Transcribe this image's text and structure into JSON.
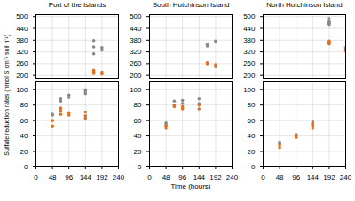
{
  "chart_data": [
    {
      "type": "scatter",
      "title": "Port of the Islands",
      "ylabel": "Sulfate reduction rates (nmol S cm⁻³ soil h⁻¹)",
      "xlim": [
        0,
        240
      ],
      "xticks": [
        0,
        48,
        96,
        144,
        192,
        240
      ],
      "ylim": [
        [
          185,
          510
        ],
        [
          0,
          110
        ]
      ],
      "yticks": [
        [
          200,
          260,
          320,
          380,
          440,
          500
        ],
        [
          0,
          20,
          40,
          60,
          80,
          100
        ]
      ],
      "grid": true,
      "series": [
        {
          "color": "#888888",
          "x": [
            48,
            48,
            72,
            72,
            96,
            96,
            144,
            144,
            144,
            168,
            168,
            168,
            192,
            192
          ],
          "values": [
            67,
            68,
            85,
            88,
            90,
            93,
            95,
            98,
            100,
            310,
            345,
            378,
            330,
            342
          ]
        },
        {
          "color": "#E07020",
          "x": [
            48,
            48,
            72,
            72,
            72,
            96,
            96,
            144,
            144,
            144,
            168,
            168,
            168,
            168,
            192,
            192
          ],
          "values": [
            53,
            60,
            68,
            73,
            76,
            67,
            70,
            63,
            66,
            71,
            210,
            215,
            220,
            226,
            208,
            216
          ]
        }
      ]
    },
    {
      "type": "scatter",
      "title": "South Hutchinson Island",
      "xlabel": "Time (hours)",
      "xlim": [
        0,
        240
      ],
      "xticks": [
        0,
        48,
        96,
        144,
        192,
        240
      ],
      "ylim": [
        [
          185,
          510
        ],
        [
          0,
          110
        ]
      ],
      "yticks": [
        [
          200,
          260,
          320,
          380,
          440,
          500
        ],
        [
          0,
          20,
          40,
          60,
          80,
          100
        ]
      ],
      "grid": true,
      "series": [
        {
          "color": "#888888",
          "x": [
            48,
            48,
            72,
            72,
            96,
            96,
            144,
            144,
            168,
            168,
            168,
            192
          ],
          "values": [
            55,
            57,
            80,
            85,
            82,
            86,
            82,
            88,
            350,
            355,
            358,
            375
          ]
        },
        {
          "color": "#E07020",
          "x": [
            48,
            48,
            72,
            72,
            96,
            96,
            144,
            144,
            168,
            168,
            192,
            192
          ],
          "values": [
            50,
            53,
            78,
            80,
            75,
            78,
            75,
            80,
            260,
            265,
            255,
            245
          ]
        }
      ]
    },
    {
      "type": "scatter",
      "title": "North Hutchinson Island",
      "xlim": [
        0,
        240
      ],
      "xticks": [
        0,
        48,
        96,
        144,
        192,
        240
      ],
      "ylim": [
        [
          185,
          510
        ],
        [
          0,
          110
        ]
      ],
      "yticks": [
        [
          200,
          260,
          320,
          380,
          440,
          500
        ],
        [
          0,
          20,
          40,
          60,
          80,
          100
        ]
      ],
      "grid": true,
      "series": [
        {
          "color": "#888888",
          "x": [
            48,
            48,
            96,
            96,
            144,
            144,
            192,
            192,
            192,
            192,
            192,
            240,
            240
          ],
          "values": [
            30,
            32,
            40,
            42,
            55,
            58,
            460,
            465,
            468,
            475,
            490,
            330,
            342
          ]
        },
        {
          "color": "#E07020",
          "x": [
            48,
            48,
            96,
            96,
            144,
            144,
            144,
            192,
            192,
            192,
            192,
            240
          ],
          "values": [
            25,
            28,
            38,
            40,
            50,
            53,
            56,
            360,
            365,
            370,
            376,
            325
          ]
        }
      ]
    }
  ]
}
